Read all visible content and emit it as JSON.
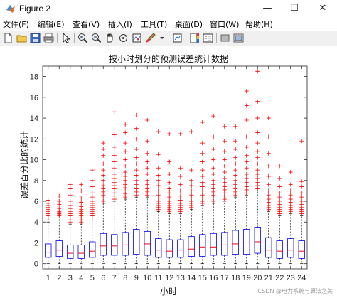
{
  "window": {
    "title": "Figure 2",
    "minimize": "—",
    "maximize": "☐",
    "close": "✕"
  },
  "menu": [
    "文件(F)",
    "编辑(E)",
    "查看(V)",
    "插入(I)",
    "工具(T)",
    "桌面(D)",
    "窗口(W)",
    "帮助(H)"
  ],
  "toolbar_icons": [
    "new-file-icon",
    "open-folder-icon",
    "save-icon",
    "print-icon",
    "pointer-icon",
    "zoom-in-icon",
    "zoom-out-icon",
    "pan-icon",
    "rotate-icon",
    "data-cursor-icon",
    "brush-icon",
    "colorbar-icon",
    "legend-icon",
    "hide-plot-tools-icon",
    "show-plot-tools-icon"
  ],
  "watermark": "CSDN @电力系统与算法之美",
  "colors": {
    "box": "#0000ff",
    "median": "#ff0000",
    "outlier": "#ff0000",
    "whisker": "#000000"
  },
  "chart_data": {
    "type": "boxplot",
    "title": "按小时划分的预测误差统计数据",
    "xlabel": "小时",
    "ylabel": "误差百分比的统计",
    "ylim": [
      -0.5,
      19
    ],
    "yticks": [
      0,
      2,
      4,
      6,
      8,
      10,
      12,
      14,
      16,
      18
    ],
    "categories": [
      "1",
      "2",
      "3",
      "4",
      "5",
      "6",
      "7",
      "8",
      "9",
      "10",
      "11",
      "12",
      "13",
      "14",
      "15",
      "16",
      "17",
      "18",
      "19",
      "20",
      "21",
      "22",
      "23",
      "24"
    ],
    "boxes": [
      {
        "q1": 0.6,
        "median": 1.1,
        "q3": 1.9,
        "lower": 0,
        "upper": 4.0,
        "outliers": [
          4.2,
          4.4,
          4.6,
          4.8,
          5.0,
          5.2,
          5.4,
          5.6,
          5.8,
          6.1
        ]
      },
      {
        "q1": 0.7,
        "median": 1.3,
        "q3": 2.2,
        "lower": 0,
        "upper": 4.4,
        "outliers": [
          4.6,
          4.7,
          4.8,
          4.9,
          5.0,
          5.3,
          5.7,
          6.0,
          6.5
        ]
      },
      {
        "q1": 0.5,
        "median": 1.0,
        "q3": 1.8,
        "lower": 0,
        "upper": 3.8,
        "outliers": [
          4.0,
          4.2,
          4.4,
          4.6,
          4.8,
          5.0,
          5.3,
          5.6,
          6.0,
          6.6,
          7.2,
          7.6
        ]
      },
      {
        "q1": 0.5,
        "median": 1.0,
        "q3": 1.8,
        "lower": 0,
        "upper": 3.8,
        "outliers": [
          4.0,
          4.2,
          4.4,
          4.6,
          4.8,
          5.0,
          5.2,
          5.5,
          5.9,
          6.3,
          7.0,
          7.6
        ]
      },
      {
        "q1": 0.6,
        "median": 1.2,
        "q3": 2.1,
        "lower": 0,
        "upper": 4.2,
        "outliers": [
          4.4,
          4.6,
          4.8,
          5.0,
          5.2,
          5.4,
          5.6,
          5.8,
          6.0,
          6.4,
          6.8,
          7.4,
          8.0,
          9.0
        ]
      },
      {
        "q1": 0.8,
        "median": 1.7,
        "q3": 2.9,
        "lower": 0,
        "upper": 5.8,
        "outliers": [
          6.0,
          6.3,
          6.6,
          6.9,
          7.2,
          7.5,
          8.0,
          8.5,
          9.0,
          9.6,
          10.4,
          11.0,
          11.6
        ]
      },
      {
        "q1": 0.8,
        "median": 1.7,
        "q3": 2.8,
        "lower": 0,
        "upper": 6.0,
        "outliers": [
          6.2,
          6.5,
          6.8,
          7.0,
          7.2,
          7.5,
          7.8,
          8.2,
          8.6,
          9.2,
          9.8,
          10.4,
          11.2,
          12.4,
          14.6
        ]
      },
      {
        "q1": 0.8,
        "median": 1.8,
        "q3": 3.0,
        "lower": 0,
        "upper": 6.2,
        "outliers": [
          6.4,
          6.7,
          7.0,
          7.3,
          7.6,
          8.0,
          8.4,
          8.8,
          9.4,
          10.0,
          10.8,
          11.6,
          12.6,
          13.4
        ]
      },
      {
        "q1": 0.9,
        "median": 2.0,
        "q3": 3.3,
        "lower": 0,
        "upper": 6.4,
        "outliers": [
          6.6,
          6.9,
          7.2,
          7.6,
          8.0,
          8.5,
          9.0,
          9.6,
          10.2,
          11.0,
          12.0,
          13.0,
          14.3
        ]
      },
      {
        "q1": 0.8,
        "median": 1.9,
        "q3": 3.1,
        "lower": 0,
        "upper": 6.4,
        "outliers": [
          6.6,
          6.9,
          7.2,
          7.6,
          8.0,
          8.6,
          9.2,
          9.8,
          10.6,
          11.8,
          13.8
        ]
      },
      {
        "q1": 0.6,
        "median": 1.3,
        "q3": 2.4,
        "lower": 0,
        "upper": 5.0,
        "outliers": [
          5.2,
          5.4,
          5.6,
          5.8,
          6.0,
          6.3,
          6.6,
          7.0,
          7.5,
          8.0,
          8.5,
          9.2,
          10.5,
          12.7
        ]
      },
      {
        "q1": 0.6,
        "median": 1.2,
        "q3": 2.3,
        "lower": 0,
        "upper": 4.8,
        "outliers": [
          5.0,
          5.2,
          5.4,
          5.6,
          5.8,
          6.0,
          6.4,
          6.8,
          7.2,
          7.8,
          8.6,
          9.8,
          12.5
        ]
      },
      {
        "q1": 0.6,
        "median": 1.3,
        "q3": 2.3,
        "lower": 0,
        "upper": 4.8,
        "outliers": [
          5.0,
          5.2,
          5.4,
          5.6,
          5.8,
          6.1,
          6.5,
          7.0,
          7.6,
          8.4,
          9.2,
          12.5
        ]
      },
      {
        "q1": 0.7,
        "median": 1.4,
        "q3": 2.6,
        "lower": 0,
        "upper": 5.2,
        "outliers": [
          5.4,
          5.6,
          5.8,
          6.0,
          6.3,
          6.6,
          7.0,
          7.5,
          8.0,
          9.0,
          12.7
        ]
      },
      {
        "q1": 0.7,
        "median": 1.6,
        "q3": 2.8,
        "lower": 0,
        "upper": 5.6,
        "outliers": [
          5.8,
          6.0,
          6.3,
          6.6,
          7.0,
          7.4,
          7.8,
          8.4,
          9.0,
          9.8,
          10.6,
          11.6,
          13.6
        ]
      },
      {
        "q1": 0.8,
        "median": 1.6,
        "q3": 2.9,
        "lower": 0,
        "upper": 5.8,
        "outliers": [
          6.0,
          6.3,
          6.6,
          6.9,
          7.2,
          7.6,
          8.0,
          8.6,
          9.2,
          10.0,
          11.0,
          12.2,
          14.2
        ]
      },
      {
        "q1": 0.8,
        "median": 1.8,
        "q3": 3.0,
        "lower": 0,
        "upper": 6.0,
        "outliers": [
          6.2,
          6.5,
          6.8,
          7.1,
          7.4,
          7.8,
          8.2,
          8.8,
          9.4,
          10.0,
          10.8,
          11.8,
          13.2
        ]
      },
      {
        "q1": 0.9,
        "median": 1.9,
        "q3": 3.2,
        "lower": 0,
        "upper": 6.4,
        "outliers": [
          6.6,
          6.9,
          7.2,
          7.6,
          8.0,
          8.5,
          9.0,
          9.6,
          10.2,
          11.0,
          11.8,
          13.2
        ]
      },
      {
        "q1": 0.9,
        "median": 2.0,
        "q3": 3.3,
        "lower": 0,
        "upper": 6.6,
        "outliers": [
          6.8,
          7.1,
          7.4,
          7.8,
          8.2,
          8.6,
          9.2,
          9.8,
          10.4,
          11.2,
          12.2,
          13.8,
          15.2,
          16.6
        ]
      },
      {
        "q1": 1.0,
        "median": 2.1,
        "q3": 3.5,
        "lower": 0,
        "upper": 7.0,
        "outliers": [
          7.2,
          7.5,
          7.8,
          8.2,
          8.6,
          9.0,
          9.6,
          10.2,
          10.8,
          11.6,
          12.6,
          14.0,
          15.6,
          18.5
        ]
      },
      {
        "q1": 0.6,
        "median": 1.3,
        "q3": 2.5,
        "lower": 0,
        "upper": 5.0,
        "outliers": [
          5.2,
          5.4,
          5.6,
          5.9,
          6.2,
          6.6,
          7.0,
          7.6,
          8.4,
          9.4,
          10.6,
          12.2,
          14.0
        ]
      },
      {
        "q1": 0.5,
        "median": 1.2,
        "q3": 2.2,
        "lower": 0,
        "upper": 4.6,
        "outliers": [
          4.8,
          5.0,
          5.2,
          5.4,
          5.7,
          6.0,
          6.4,
          6.8,
          7.4,
          8.2,
          9.4
        ]
      },
      {
        "q1": 0.6,
        "median": 1.3,
        "q3": 2.4,
        "lower": 0,
        "upper": 4.8,
        "outliers": [
          5.0,
          5.2,
          5.4,
          5.6,
          5.9,
          6.2,
          6.6,
          7.0,
          7.6,
          8.8
        ]
      },
      {
        "q1": 0.5,
        "median": 1.2,
        "q3": 2.2,
        "lower": 0,
        "upper": 4.6,
        "outliers": [
          4.8,
          5.0,
          5.2,
          5.4,
          5.7,
          6.0,
          6.4,
          6.8,
          7.4,
          7.9,
          11.8
        ]
      }
    ]
  }
}
